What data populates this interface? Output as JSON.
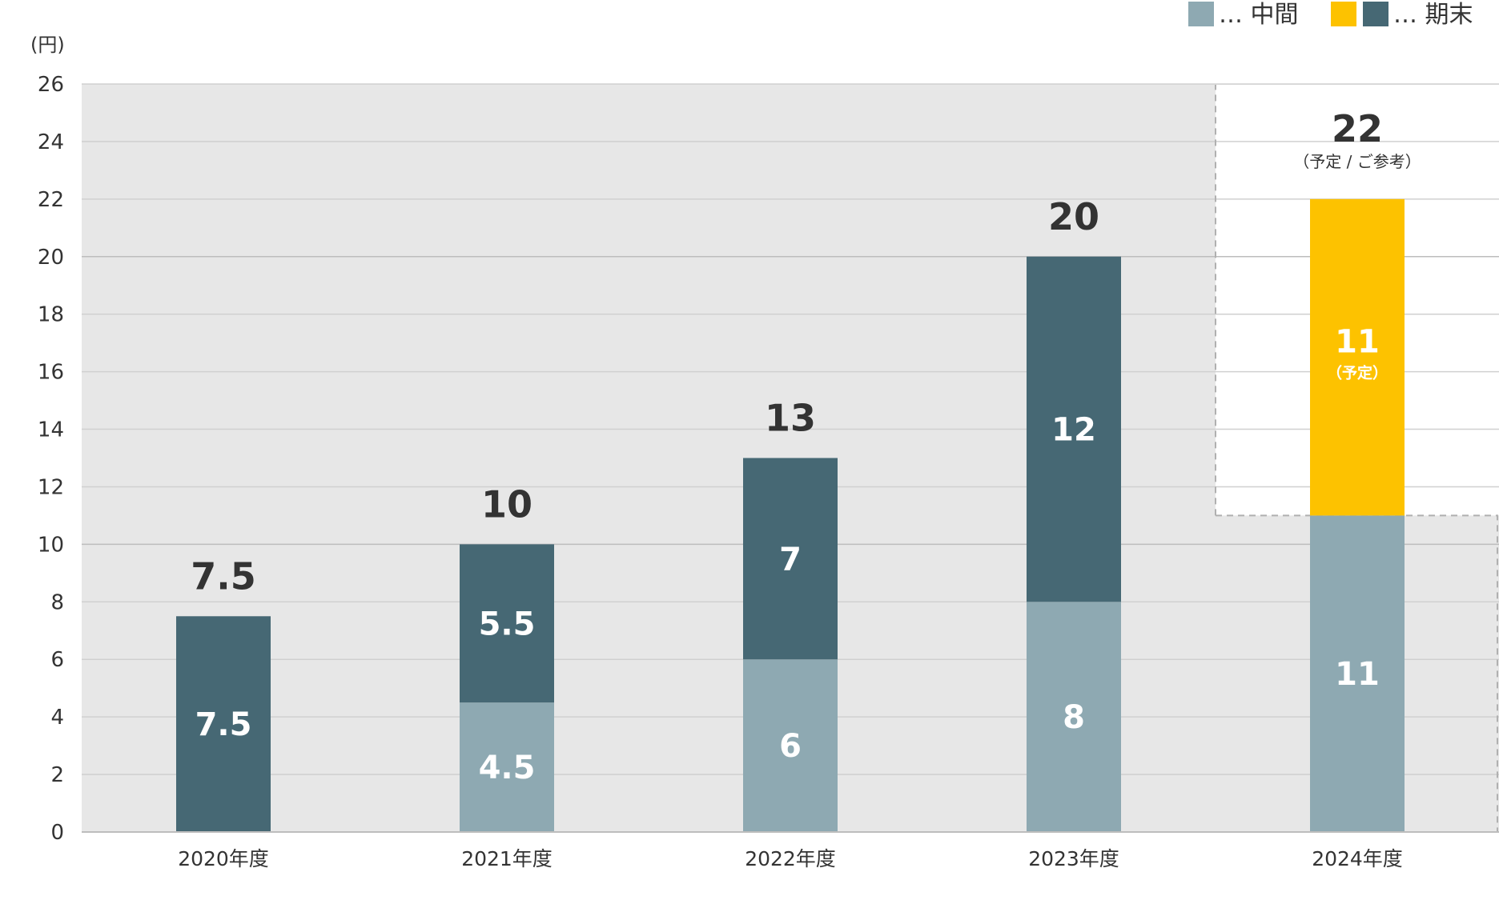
{
  "chart_data": {
    "type": "bar",
    "stacked": true,
    "unit_label": "(円)",
    "categories": [
      "2020年度",
      "2021年度",
      "2022年度",
      "2023年度",
      "2024年度"
    ],
    "series": [
      {
        "name": "中間",
        "values": [
          0,
          4.5,
          6,
          8,
          11
        ],
        "color": "#8ea9b2"
      },
      {
        "name": "期末",
        "values": [
          7.5,
          5.5,
          7,
          12,
          11
        ],
        "color": "#466874",
        "highlight_color": "#fdc200",
        "highlight_index": 4
      }
    ],
    "segment_labels": [
      [
        "",
        "4.5",
        "6",
        "8",
        "11"
      ],
      [
        "7.5",
        "5.5",
        "7",
        "12",
        "11"
      ]
    ],
    "segment_notes": [
      [
        "",
        "",
        "",
        "",
        ""
      ],
      [
        "",
        "",
        "",
        "",
        "（予定）"
      ]
    ],
    "totals": [
      "7.5",
      "10",
      "13",
      "20",
      "22"
    ],
    "total_notes": [
      "",
      "",
      "",
      "",
      "（予定 / ご参考）"
    ],
    "legend": [
      {
        "swatches": [
          "#8ea9b2"
        ],
        "label": "… 中間"
      },
      {
        "swatches": [
          "#fdc200",
          "#466874"
        ],
        "label": "… 期末"
      }
    ],
    "legend_position": "top-right",
    "y_ticks": [
      0,
      2,
      4,
      6,
      8,
      10,
      12,
      14,
      16,
      18,
      20,
      22,
      24,
      26
    ],
    "ylim": [
      0,
      26
    ],
    "grid": true,
    "plot_background": "#e7e7e7",
    "forecast_highlight_index": 4
  }
}
